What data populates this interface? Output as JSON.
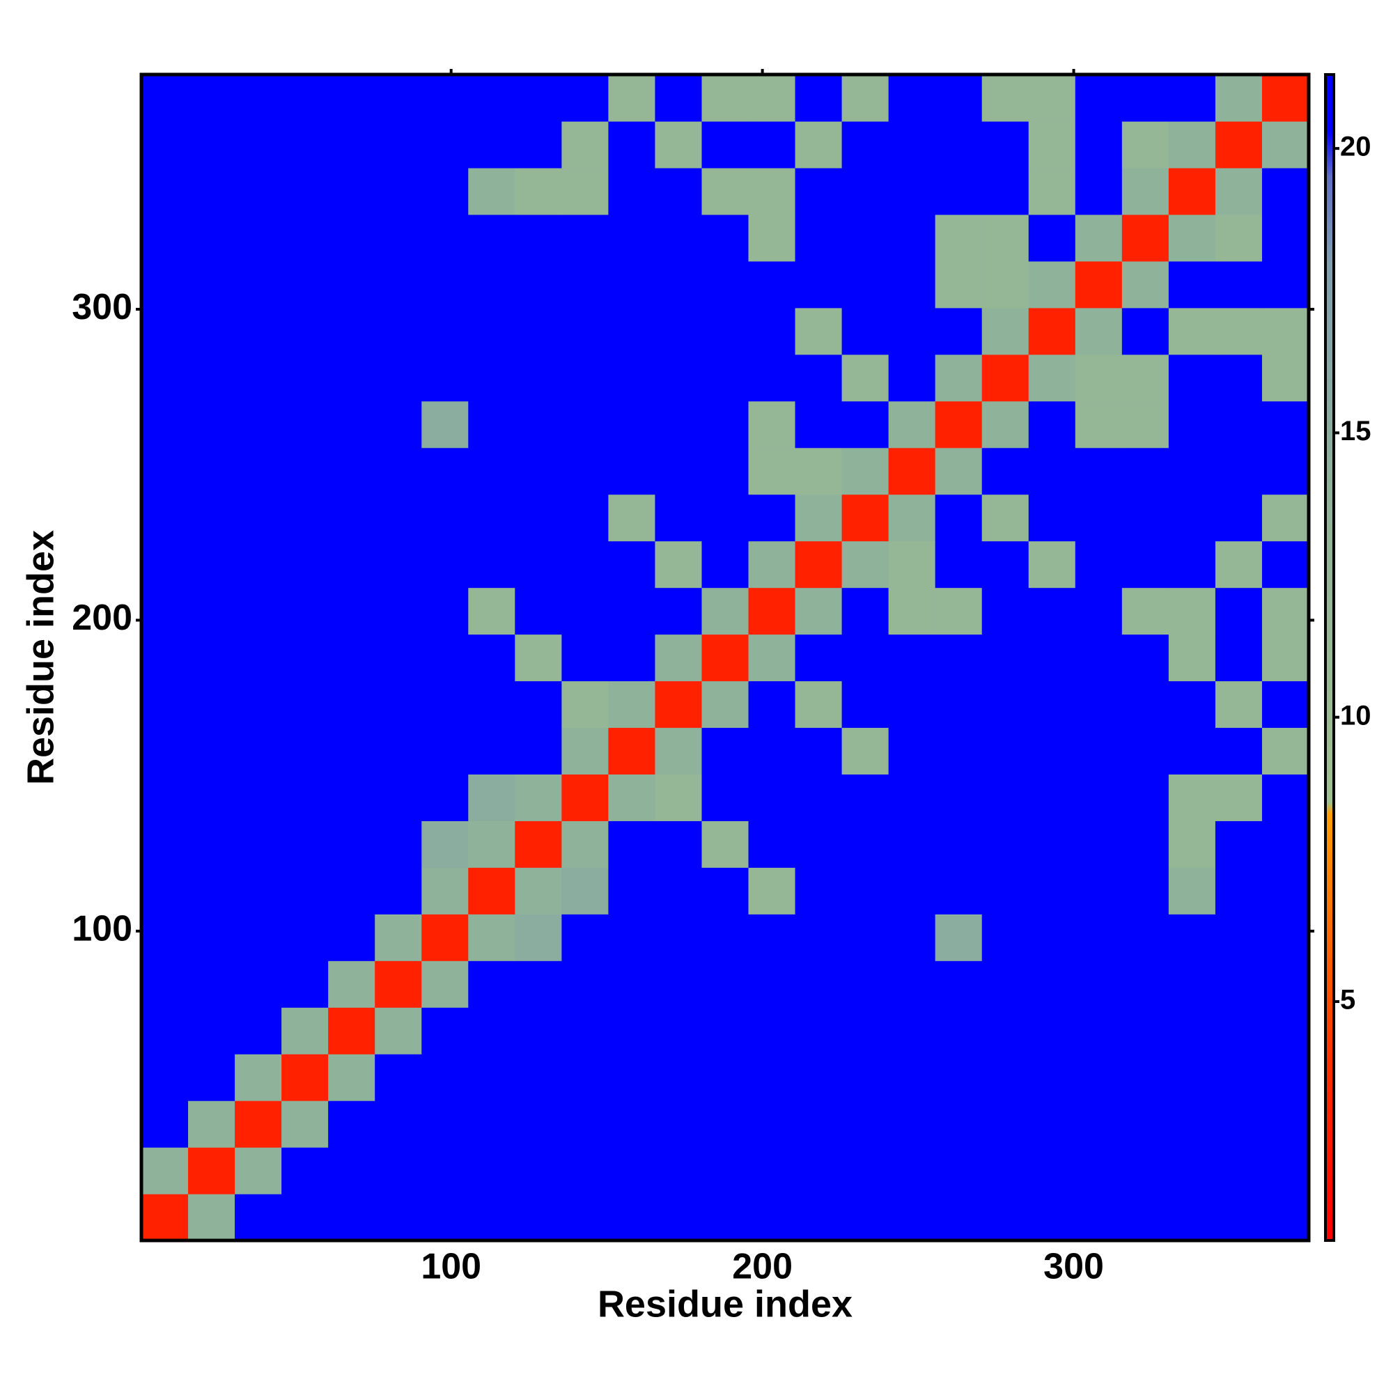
{
  "chart_data": {
    "type": "heatmap",
    "x_label": "Residue index",
    "y_label": "Residue index",
    "x_edges": [
      0.5,
      15.5,
      30.5,
      45.5,
      60.5,
      75.5,
      90.5,
      105.5,
      120.5,
      135.5,
      150.5,
      165.5,
      180.5,
      195.5,
      210.5,
      225.5,
      240.5,
      255.5,
      270.5,
      285.5,
      300.5,
      315.5,
      330.5,
      345.5,
      360.5,
      375.5
    ],
    "y_edges": [
      0.5,
      15.5,
      30.5,
      45.5,
      60.5,
      75.5,
      90.5,
      105.5,
      120.5,
      135.5,
      150.5,
      165.5,
      180.5,
      195.5,
      210.5,
      225.5,
      240.5,
      255.5,
      270.5,
      285.5,
      300.5,
      315.5,
      330.5,
      345.5,
      360.5,
      375.5
    ],
    "z": [
      [
        3,
        14,
        21,
        21,
        21,
        21,
        21,
        21,
        21,
        21,
        21,
        21,
        21,
        21,
        21,
        21,
        21,
        21,
        21,
        21,
        21,
        21,
        21,
        21,
        21
      ],
      [
        14,
        3,
        14,
        21,
        21,
        21,
        21,
        21,
        21,
        21,
        21,
        21,
        21,
        21,
        21,
        21,
        21,
        21,
        21,
        21,
        21,
        21,
        21,
        21,
        21
      ],
      [
        21,
        14,
        3,
        14,
        21,
        21,
        21,
        21,
        21,
        21,
        21,
        21,
        21,
        21,
        21,
        21,
        21,
        21,
        21,
        21,
        21,
        21,
        21,
        21,
        21
      ],
      [
        21,
        21,
        14,
        3,
        14,
        21,
        21,
        21,
        21,
        21,
        21,
        21,
        21,
        21,
        21,
        21,
        21,
        21,
        21,
        21,
        21,
        21,
        21,
        21,
        21
      ],
      [
        21,
        21,
        21,
        14,
        3,
        14,
        21,
        21,
        21,
        21,
        21,
        21,
        21,
        21,
        21,
        21,
        21,
        21,
        21,
        21,
        21,
        21,
        21,
        21,
        21
      ],
      [
        21,
        21,
        21,
        21,
        14,
        3,
        14,
        21,
        21,
        21,
        21,
        21,
        21,
        21,
        21,
        21,
        21,
        21,
        21,
        21,
        21,
        21,
        21,
        21,
        21
      ],
      [
        21,
        21,
        21,
        21,
        21,
        14,
        3,
        14,
        15,
        21,
        21,
        21,
        21,
        21,
        21,
        21,
        21,
        15,
        21,
        21,
        21,
        21,
        21,
        21,
        21
      ],
      [
        21,
        21,
        21,
        21,
        21,
        21,
        14,
        3,
        14,
        15,
        21,
        21,
        21,
        12,
        21,
        21,
        21,
        21,
        21,
        21,
        21,
        21,
        14,
        21,
        21
      ],
      [
        21,
        21,
        21,
        21,
        21,
        21,
        15,
        14,
        3,
        14,
        21,
        21,
        12,
        21,
        21,
        21,
        21,
        21,
        21,
        21,
        21,
        21,
        12,
        21,
        21
      ],
      [
        21,
        21,
        21,
        21,
        21,
        21,
        21,
        15,
        14,
        3,
        14,
        12,
        21,
        21,
        21,
        21,
        21,
        21,
        21,
        21,
        21,
        21,
        12,
        12,
        21
      ],
      [
        21,
        21,
        21,
        21,
        21,
        21,
        21,
        21,
        21,
        14,
        3,
        14,
        21,
        21,
        21,
        12,
        21,
        21,
        21,
        21,
        21,
        21,
        21,
        21,
        12
      ],
      [
        21,
        21,
        21,
        21,
        21,
        21,
        21,
        21,
        21,
        12,
        14,
        3,
        14,
        21,
        12,
        21,
        21,
        21,
        21,
        21,
        21,
        21,
        21,
        12,
        21
      ],
      [
        21,
        21,
        21,
        21,
        21,
        21,
        21,
        21,
        12,
        21,
        21,
        14,
        3,
        14,
        21,
        21,
        21,
        21,
        21,
        21,
        21,
        21,
        12,
        21,
        12
      ],
      [
        21,
        21,
        21,
        21,
        21,
        21,
        21,
        12,
        21,
        21,
        21,
        21,
        14,
        3,
        14,
        21,
        12,
        12,
        21,
        21,
        21,
        12,
        12,
        21,
        12
      ],
      [
        21,
        21,
        21,
        21,
        21,
        21,
        21,
        21,
        21,
        21,
        21,
        12,
        21,
        14,
        3,
        14,
        12,
        21,
        21,
        12,
        21,
        21,
        21,
        12,
        21
      ],
      [
        21,
        21,
        21,
        21,
        21,
        21,
        21,
        21,
        21,
        21,
        12,
        21,
        21,
        21,
        14,
        3,
        14,
        21,
        12,
        21,
        21,
        21,
        21,
        21,
        12
      ],
      [
        21,
        21,
        21,
        21,
        21,
        21,
        21,
        21,
        21,
        21,
        21,
        21,
        21,
        12,
        12,
        14,
        3,
        14,
        21,
        21,
        21,
        21,
        21,
        21,
        21
      ],
      [
        21,
        21,
        21,
        21,
        21,
        21,
        15,
        21,
        21,
        21,
        21,
        21,
        21,
        12,
        21,
        21,
        14,
        3,
        14,
        21,
        12,
        12,
        21,
        21,
        21
      ],
      [
        21,
        21,
        21,
        21,
        21,
        21,
        21,
        21,
        21,
        21,
        21,
        21,
        21,
        21,
        21,
        12,
        21,
        14,
        3,
        14,
        12,
        12,
        21,
        21,
        12
      ],
      [
        21,
        21,
        21,
        21,
        21,
        21,
        21,
        21,
        21,
        21,
        21,
        21,
        21,
        21,
        12,
        21,
        21,
        21,
        14,
        3,
        14,
        21,
        12,
        12,
        12
      ],
      [
        21,
        21,
        21,
        21,
        21,
        21,
        21,
        21,
        21,
        21,
        21,
        21,
        21,
        21,
        21,
        21,
        21,
        12,
        12,
        14,
        3,
        14,
        21,
        21,
        21
      ],
      [
        21,
        21,
        21,
        21,
        21,
        21,
        21,
        21,
        21,
        21,
        21,
        21,
        21,
        12,
        21,
        21,
        21,
        12,
        12,
        21,
        14,
        3,
        14,
        12,
        21
      ],
      [
        21,
        21,
        21,
        21,
        21,
        21,
        21,
        14,
        12,
        12,
        21,
        21,
        12,
        12,
        21,
        21,
        21,
        21,
        21,
        12,
        21,
        14,
        3,
        14,
        21
      ],
      [
        21,
        21,
        21,
        21,
        21,
        21,
        21,
        21,
        21,
        12,
        21,
        12,
        21,
        21,
        12,
        21,
        21,
        21,
        21,
        12,
        21,
        12,
        14,
        3,
        14
      ],
      [
        21,
        21,
        21,
        21,
        21,
        21,
        21,
        21,
        21,
        21,
        12,
        21,
        12,
        12,
        21,
        12,
        21,
        21,
        12,
        12,
        21,
        21,
        21,
        14,
        3
      ]
    ],
    "xlim": [
      0.5,
      375.5
    ],
    "ylim": [
      0.5,
      375.5
    ],
    "xticks": [
      100,
      200,
      300
    ],
    "yticks": [
      100,
      200,
      300
    ],
    "colorscale": [
      [
        0.8,
        "#ff0000"
      ],
      [
        4,
        "#ff3000"
      ],
      [
        6.5,
        "#ff7000"
      ],
      [
        8.3,
        "#ffa000"
      ],
      [
        8.5,
        "#9fc08f"
      ],
      [
        14,
        "#8fb29a"
      ],
      [
        18,
        "#7f9fb0"
      ],
      [
        19.5,
        "#6070c0"
      ],
      [
        20.3,
        "#0000ff"
      ],
      [
        21.3,
        "#0000ff"
      ]
    ],
    "colorbar": {
      "lim": [
        0.8,
        21.3
      ],
      "ticks": [
        5,
        10,
        15,
        20
      ]
    }
  }
}
